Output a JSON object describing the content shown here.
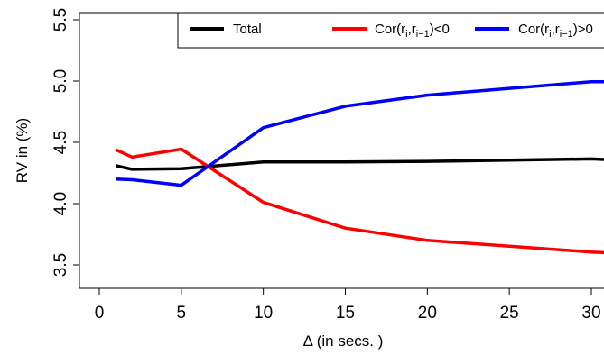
{
  "chart_data": {
    "type": "line",
    "xlabel": "Δ (in secs. )",
    "ylabel": "RV in (%)",
    "xlim": [
      -0.5,
      30.8
    ],
    "ylim": [
      3.3,
      5.58
    ],
    "x_ticks": [
      "0",
      "5",
      "10",
      "15",
      "20",
      "25",
      "30"
    ],
    "y_ticks": [
      "3.5",
      "4.0",
      "4.5",
      "5.0",
      "5.5"
    ],
    "legend_position": "top",
    "series": [
      {
        "name": "Total",
        "color": "#000000",
        "x": [
          1,
          2,
          5,
          10,
          15,
          20,
          30,
          30.8
        ],
        "y": [
          4.31,
          4.28,
          4.285,
          4.34,
          4.34,
          4.345,
          4.365,
          4.36
        ]
      },
      {
        "name": "Cor(r_i,r_{i-1})<0",
        "color": "#ff0000",
        "x": [
          1,
          2,
          5,
          10,
          15,
          20,
          30,
          30.8
        ],
        "y": [
          4.44,
          4.38,
          4.445,
          4.01,
          3.8,
          3.7,
          3.605,
          3.6
        ]
      },
      {
        "name": "Cor(r_i,r_{i-1})>0",
        "color": "#0000ff",
        "x": [
          1,
          2,
          5,
          10,
          15,
          20,
          30,
          30.8
        ],
        "y": [
          4.2,
          4.195,
          4.15,
          4.62,
          4.795,
          4.885,
          4.995,
          4.995
        ]
      }
    ]
  }
}
